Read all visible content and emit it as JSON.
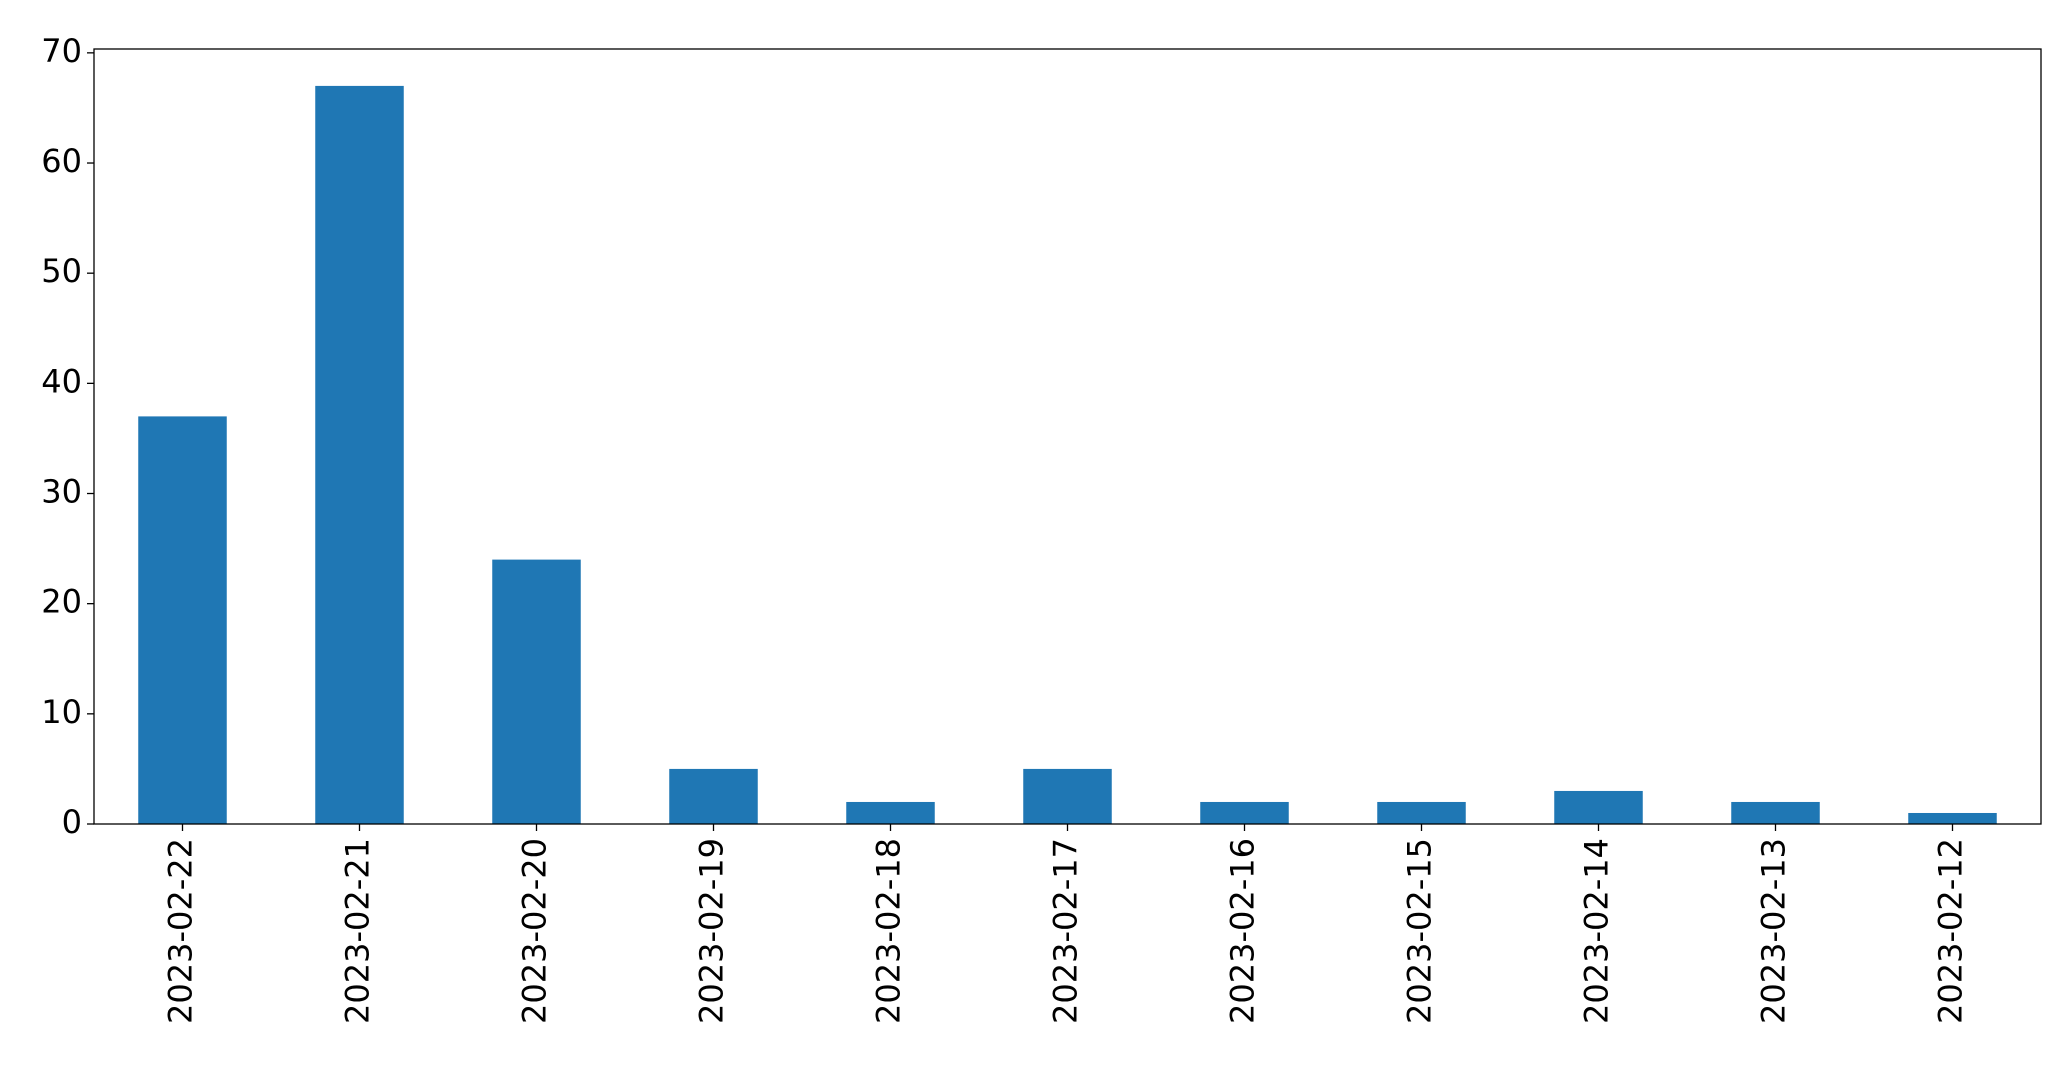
{
  "chart_data": {
    "type": "bar",
    "categories": [
      "2023-02-22",
      "2023-02-21",
      "2023-02-20",
      "2023-02-19",
      "2023-02-18",
      "2023-02-17",
      "2023-02-16",
      "2023-02-15",
      "2023-02-14",
      "2023-02-13",
      "2023-02-12"
    ],
    "values": [
      37,
      67,
      24,
      5,
      2,
      5,
      2,
      2,
      3,
      2,
      1
    ],
    "color": "#1f77b4",
    "ylim": [
      0,
      70.35
    ],
    "yticks": [
      0,
      10,
      20,
      30,
      40,
      50,
      60,
      70
    ],
    "grid": false
  }
}
